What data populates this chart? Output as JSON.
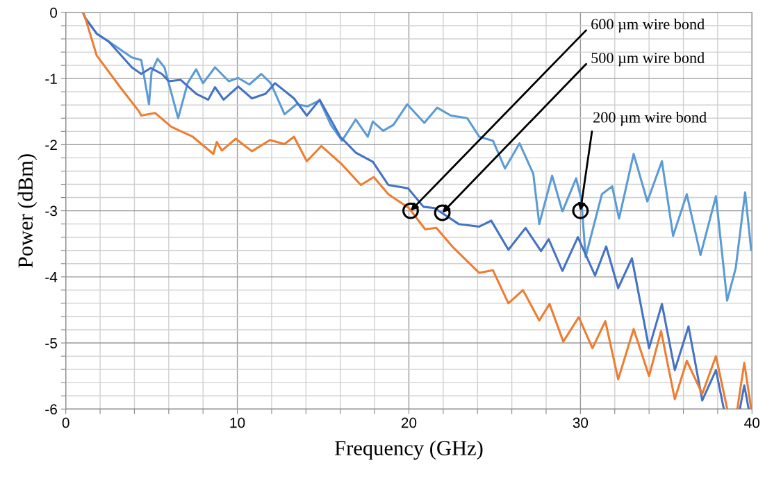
{
  "chart_data": {
    "type": "line",
    "xlabel": "Frequency (GHz)",
    "ylabel": "Power (dBm)",
    "xlim": [
      0,
      40
    ],
    "ylim": [
      -6,
      0
    ],
    "xticks": [
      0,
      {
        "value": 2,
        "label": null
      },
      {
        "value": 4,
        "label": null
      },
      {
        "value": 6,
        "label": null
      },
      {
        "value": 8,
        "label": null
      },
      10,
      {
        "value": 12,
        "label": null
      },
      {
        "value": 14,
        "label": null
      },
      {
        "value": 16,
        "label": null
      },
      {
        "value": 18,
        "label": null
      },
      20,
      {
        "value": 22,
        "label": null
      },
      {
        "value": 24,
        "label": null
      },
      {
        "value": 26,
        "label": null
      },
      {
        "value": 28,
        "label": null
      },
      30,
      {
        "value": 32,
        "label": null
      },
      {
        "value": 34,
        "label": null
      },
      {
        "value": 36,
        "label": null
      },
      {
        "value": 38,
        "label": null
      },
      40
    ],
    "yticks": [
      -6,
      {
        "value": -5.8,
        "label": null
      },
      {
        "value": -5.6,
        "label": null
      },
      {
        "value": -5.4,
        "label": null
      },
      {
        "value": -5.2,
        "label": null
      },
      -5,
      {
        "value": -4.8,
        "label": null
      },
      {
        "value": -4.6,
        "label": null
      },
      {
        "value": -4.4,
        "label": null
      },
      {
        "value": -4.2,
        "label": null
      },
      -4,
      {
        "value": -3.8,
        "label": null
      },
      {
        "value": -3.6,
        "label": null
      },
      {
        "value": -3.4,
        "label": null
      },
      {
        "value": -3.2,
        "label": null
      },
      -3,
      {
        "value": -2.8,
        "label": null
      },
      {
        "value": -2.6,
        "label": null
      },
      {
        "value": -2.4,
        "label": null
      },
      {
        "value": -2.2,
        "label": null
      },
      -2,
      {
        "value": -1.8,
        "label": null
      },
      {
        "value": -1.6,
        "label": null
      },
      {
        "value": -1.4,
        "label": null
      },
      {
        "value": -1.2,
        "label": null
      },
      -1,
      {
        "value": -0.8,
        "label": null
      },
      {
        "value": -0.6,
        "label": null
      },
      {
        "value": -0.4,
        "label": null
      },
      {
        "value": -0.2,
        "label": null
      },
      0
    ],
    "grid": true,
    "line_style": "solid",
    "marker": "none",
    "series": [
      {
        "color": "#5b9bd5",
        "x": [
          1.0,
          1.15,
          1.8,
          2.5,
          3.85,
          4.4,
          4.85,
          5.0,
          5.35,
          5.75,
          6.55,
          7.1,
          7.6,
          8.0,
          8.7,
          9.5,
          10.05,
          10.7,
          11.4,
          11.95,
          12.75,
          13.45,
          14.1,
          14.8,
          15.45,
          16.1,
          16.9,
          17.6,
          17.9,
          18.5,
          19.1,
          19.9,
          20.9,
          21.65,
          22.45,
          23.4,
          24.1,
          24.9,
          25.6,
          26.45,
          27.25,
          27.6,
          28.35,
          28.95,
          29.75,
          30.05,
          30.3,
          31.25,
          31.85,
          32.25,
          33.1,
          33.9,
          34.75,
          35.4,
          36.2,
          37.0,
          37.9,
          38.55,
          39.05,
          39.6,
          39.95
        ],
        "values": [
          0,
          -0.09,
          -0.32,
          -0.44,
          -0.68,
          -0.72,
          -1.39,
          -0.9,
          -0.7,
          -0.83,
          -1.6,
          -1.07,
          -0.86,
          -1.07,
          -0.83,
          -1.04,
          -0.99,
          -1.09,
          -0.93,
          -1.07,
          -1.54,
          -1.39,
          -1.42,
          -1.33,
          -1.7,
          -1.94,
          -1.62,
          -1.88,
          -1.65,
          -1.79,
          -1.7,
          -1.39,
          -1.67,
          -1.44,
          -1.56,
          -1.6,
          -1.88,
          -1.94,
          -2.36,
          -1.98,
          -2.44,
          -3.2,
          -2.47,
          -3.01,
          -2.51,
          -2.83,
          -3.7,
          -2.75,
          -2.63,
          -3.12,
          -2.14,
          -2.86,
          -2.25,
          -3.38,
          -2.75,
          -3.67,
          -2.78,
          -4.36,
          -3.87,
          -2.72,
          -3.59
        ]
      },
      {
        "color": "#4472c4",
        "x": [
          1.0,
          1.15,
          1.8,
          2.5,
          3.85,
          4.4,
          4.95,
          5.6,
          6.0,
          6.7,
          7.6,
          8.3,
          8.7,
          9.2,
          10.05,
          10.85,
          11.65,
          12.2,
          13.3,
          14.05,
          14.8,
          16.0,
          16.9,
          17.9,
          18.8,
          19.95,
          20.85,
          21.5,
          22.9,
          24.1,
          24.8,
          25.8,
          26.8,
          27.7,
          28.15,
          28.95,
          29.85,
          30.85,
          31.5,
          32.2,
          33.0,
          34.0,
          34.75,
          35.5,
          36.3,
          37.1,
          37.9,
          38.35,
          38.8,
          39.3,
          39.55,
          39.8
        ],
        "values": [
          0,
          -0.09,
          -0.32,
          -0.44,
          -0.83,
          -0.93,
          -0.84,
          -0.93,
          -1.04,
          -1.02,
          -1.23,
          -1.32,
          -1.13,
          -1.32,
          -1.12,
          -1.3,
          -1.23,
          -1.07,
          -1.3,
          -1.56,
          -1.32,
          -1.88,
          -2.12,
          -2.26,
          -2.61,
          -2.66,
          -2.94,
          -2.96,
          -3.2,
          -3.24,
          -3.15,
          -3.59,
          -3.26,
          -3.61,
          -3.43,
          -3.91,
          -3.4,
          -3.98,
          -3.54,
          -4.17,
          -3.72,
          -5.08,
          -4.41,
          -5.41,
          -4.75,
          -5.87,
          -5.41,
          -5.99,
          null,
          -5.99,
          -5.64,
          -5.99
        ]
      },
      {
        "color": "#ed7d31",
        "x": [
          1.0,
          1.1,
          1.8,
          3.2,
          4.25,
          4.4,
          5.2,
          6.15,
          7.4,
          8.6,
          8.8,
          9.1,
          9.9,
          10.85,
          11.9,
          12.75,
          13.3,
          14.05,
          14.9,
          16.1,
          17.2,
          17.95,
          18.8,
          20.0,
          20.95,
          21.6,
          22.6,
          24.1,
          24.9,
          25.8,
          26.65,
          27.6,
          28.2,
          29.0,
          29.9,
          30.7,
          31.45,
          32.2,
          33.1,
          34.0,
          34.7,
          35.5,
          36.2,
          37.1,
          37.9,
          38.55,
          38.85,
          39.15,
          39.55,
          39.95
        ],
        "values": [
          0,
          -0.05,
          -0.65,
          -1.14,
          -1.49,
          -1.56,
          -1.52,
          -1.73,
          -1.88,
          -2.14,
          -1.96,
          -2.09,
          -1.91,
          -2.1,
          -1.93,
          -1.99,
          -1.88,
          -2.25,
          -2.02,
          -2.3,
          -2.61,
          -2.49,
          -2.75,
          -2.96,
          -3.28,
          -3.26,
          -3.56,
          -3.94,
          -3.9,
          -4.4,
          -4.2,
          -4.66,
          -4.41,
          -4.98,
          -4.61,
          -5.08,
          -4.67,
          -5.55,
          -4.79,
          -5.5,
          -4.82,
          -5.85,
          -5.27,
          -5.77,
          -5.2,
          -5.99,
          null,
          -5.99,
          -5.3,
          -5.99
        ]
      }
    ],
    "annotations": [
      {
        "text": "600 µm wire bond",
        "x": 20.1,
        "y": -3.0
      },
      {
        "text": "500 µm wire bond",
        "x": 21.95,
        "y": -3.03
      },
      {
        "text": "200 µm wire bond",
        "x": 30.0,
        "y": -3.0
      }
    ]
  }
}
